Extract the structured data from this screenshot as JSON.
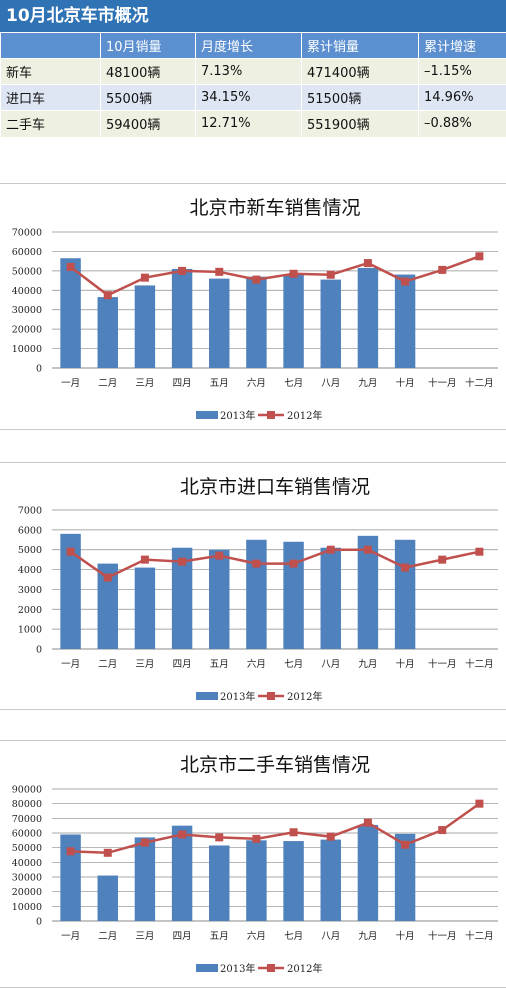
{
  "table": {
    "title": "10月北京车市概况",
    "headers": [
      "",
      "10月销量",
      "月度增长",
      "累计销量",
      "累计增速"
    ],
    "rows": [
      [
        "新车",
        "48100辆",
        "7.13%",
        "471400辆",
        "–1.15%"
      ],
      [
        "进口车",
        "5500辆",
        "34.15%",
        "51500辆",
        "14.96%"
      ],
      [
        "二手车",
        "59400辆",
        "12.71%",
        "551900辆",
        "–0.88%"
      ]
    ]
  },
  "colors": {
    "bar": "#4f81bd",
    "line": "#c0504d",
    "header_bg": "#2f73b4"
  },
  "chart_data": [
    {
      "type": "bar+line",
      "title": "北京市新车销售情况",
      "categories": [
        "一月",
        "二月",
        "三月",
        "四月",
        "五月",
        "六月",
        "七月",
        "八月",
        "九月",
        "十月",
        "十一月",
        "十二月"
      ],
      "ylim": [
        0,
        70000
      ],
      "yticks": [
        0,
        10000,
        20000,
        30000,
        40000,
        50000,
        60000,
        70000
      ],
      "grid": true,
      "legend_position": "bottom",
      "series": [
        {
          "name": "2013年",
          "type": "bar",
          "values": [
            56500,
            36500,
            42500,
            51000,
            46000,
            47000,
            48000,
            45500,
            51500,
            48100,
            null,
            null
          ]
        },
        {
          "name": "2012年",
          "type": "line",
          "values": [
            52000,
            37500,
            46500,
            50000,
            49500,
            45500,
            48500,
            48000,
            54000,
            44500,
            50500,
            57500
          ]
        }
      ]
    },
    {
      "type": "bar+line",
      "title": "北京市进口车销售情况",
      "categories": [
        "一月",
        "二月",
        "三月",
        "四月",
        "五月",
        "六月",
        "七月",
        "八月",
        "九月",
        "十月",
        "十一月",
        "十二月"
      ],
      "ylim": [
        0,
        7000
      ],
      "yticks": [
        0,
        1000,
        2000,
        3000,
        4000,
        5000,
        6000,
        7000
      ],
      "grid": true,
      "legend_position": "bottom",
      "series": [
        {
          "name": "2013年",
          "type": "bar",
          "values": [
            5800,
            4300,
            4100,
            5100,
            5000,
            5500,
            5400,
            5100,
            5700,
            5500,
            null,
            null
          ]
        },
        {
          "name": "2012年",
          "type": "line",
          "values": [
            4900,
            3600,
            4500,
            4400,
            4700,
            4300,
            4300,
            5000,
            5000,
            4100,
            4500,
            4900
          ]
        }
      ]
    },
    {
      "type": "bar+line",
      "title": "北京市二手车销售情况",
      "categories": [
        "一月",
        "二月",
        "三月",
        "四月",
        "五月",
        "六月",
        "七月",
        "八月",
        "九月",
        "十月",
        "十一月",
        "十二月"
      ],
      "ylim": [
        0,
        90000
      ],
      "yticks": [
        0,
        10000,
        20000,
        30000,
        40000,
        50000,
        60000,
        70000,
        80000,
        90000
      ],
      "grid": true,
      "legend_position": "bottom",
      "series": [
        {
          "name": "2013年",
          "type": "bar",
          "values": [
            59000,
            31000,
            57000,
            65000,
            51500,
            55000,
            54500,
            55500,
            65500,
            59400,
            null,
            null
          ]
        },
        {
          "name": "2012年",
          "type": "line",
          "values": [
            47500,
            46500,
            53500,
            59000,
            57000,
            56000,
            60500,
            57500,
            67000,
            52000,
            62000,
            80000
          ]
        }
      ]
    }
  ]
}
